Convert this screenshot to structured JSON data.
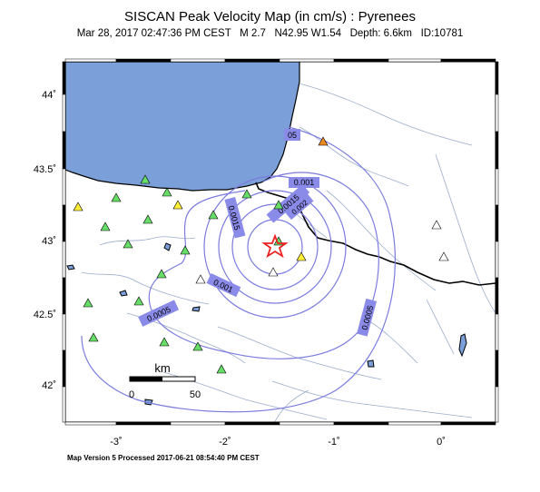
{
  "map": {
    "title": "SISCAN Peak Velocity Map (in cm/s) : Pyrenees",
    "subtitle_date": "Mar 28, 2017 02:47:36 PM CEST",
    "subtitle_mag": "M 2.7",
    "subtitle_loc": "N42.95 W1.54",
    "subtitle_depth": "Depth: 6.6km",
    "subtitle_id": "ID:10781",
    "footer": "Map Version 5 Processed 2017-06-21 08:54:40 PM CEST",
    "lat_labels": [
      "44˚",
      "43.5˚",
      "43˚",
      "42.5˚",
      "42˚"
    ],
    "lon_labels": [
      "-3˚",
      "-2˚",
      "-1˚",
      "0˚"
    ],
    "contour_labels": [
      "05",
      "0.001",
      "0.0015",
      "0.002",
      "0.0015",
      "0.001",
      "0.0005",
      "0.0005"
    ],
    "scale_bar": {
      "unit": "km",
      "ticks": [
        "0",
        "50"
      ]
    },
    "colors": {
      "sea": "#7b9fd8",
      "contour": "#7b7bdf",
      "label_box": "#8a8ae8",
      "station_green": "#66dd66",
      "station_yellow": "#ffee33",
      "station_orange": "#ee8822",
      "epicenter": "#ee2222"
    },
    "epicenter": {
      "lat": 42.95,
      "lon": -1.54
    }
  }
}
